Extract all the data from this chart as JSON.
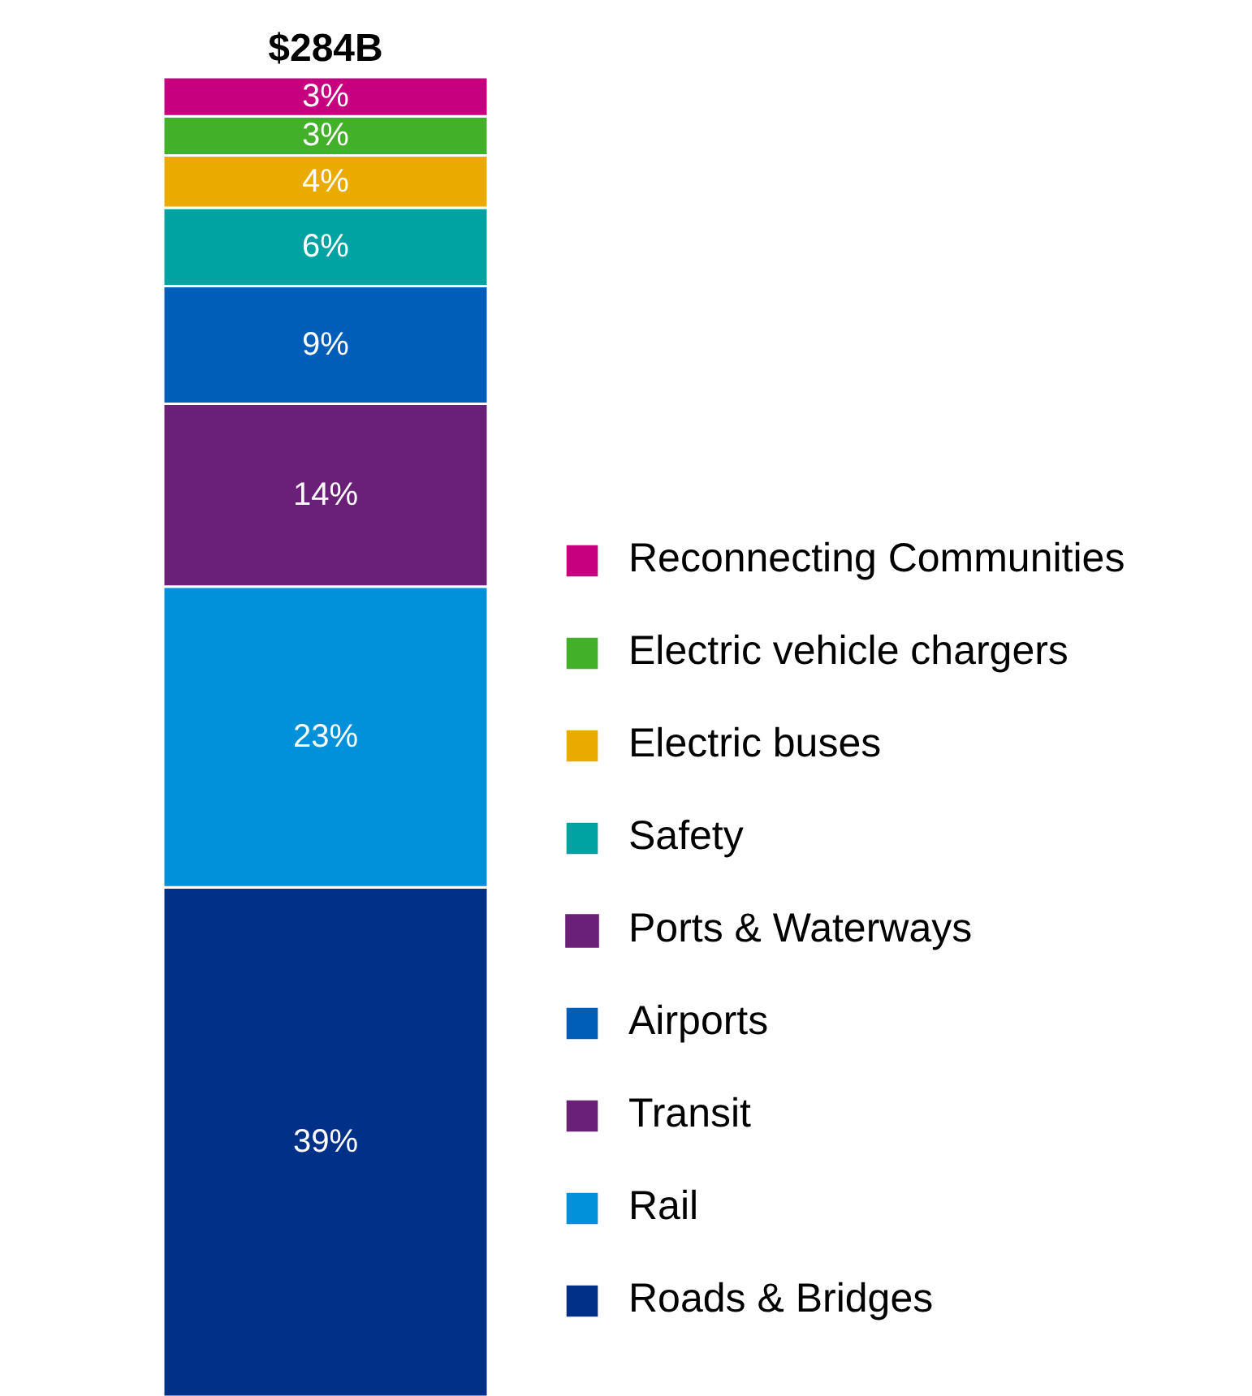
{
  "chart_data": {
    "type": "bar",
    "stacked": true,
    "title": "$284B",
    "categories": [
      null
    ],
    "legend": "right",
    "series": [
      {
        "name": "Roads & Bridges",
        "color": "#003087",
        "values": [
          39
        ],
        "value_labels": [
          "39%"
        ]
      },
      {
        "name": "Rail",
        "color": "#0091da",
        "values": [
          23
        ],
        "value_labels": [
          "23%"
        ]
      },
      {
        "name": "Transit",
        "color": "#6b2077",
        "values": [
          14
        ],
        "value_labels": [
          "14%"
        ]
      },
      {
        "name": "Airports",
        "color": "#005eb8",
        "values": [
          9
        ],
        "value_labels": [
          "9%"
        ]
      },
      {
        "name": "Ports & Waterways",
        "color": "#6b2077",
        "values": [
          null
        ],
        "value_labels": [
          null
        ]
      },
      {
        "name": "Safety",
        "color": "#00a3a1",
        "values": [
          6
        ],
        "value_labels": [
          "6%"
        ]
      },
      {
        "name": "Electric buses",
        "color": "#eaaa00",
        "values": [
          4
        ],
        "value_labels": [
          "4%"
        ]
      },
      {
        "name": "Electric vehicle chargers",
        "color": "#43b02a",
        "values": [
          3
        ],
        "value_labels": [
          "3%"
        ]
      },
      {
        "name": "Reconnecting Communities",
        "color": "#c6007e",
        "values": [
          3
        ],
        "value_labels": [
          "3%"
        ]
      }
    ]
  }
}
